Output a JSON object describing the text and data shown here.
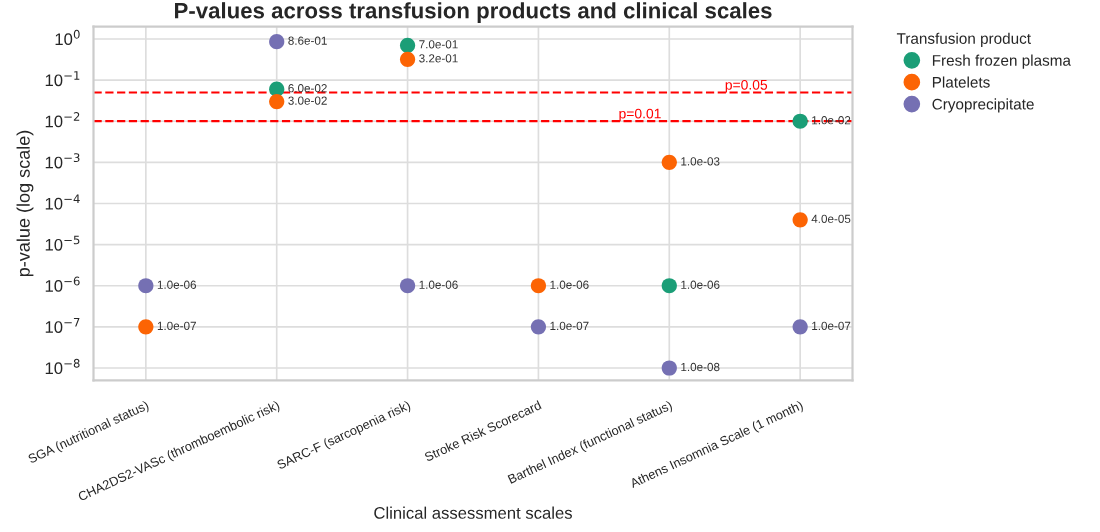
{
  "chart_data": {
    "type": "scatter",
    "title": "P-values across transfusion products and clinical scales",
    "xlabel": "Clinical assessment scales",
    "ylabel": "p-value (log scale)",
    "legend_title": "Transfusion product",
    "categories": [
      "SGA (nutritional status)",
      "CHA2DS2-VASc (thromboembolic risk)",
      "SARC-F (sarcopenia risk)",
      "Stroke Risk Scorecard",
      "Barthel Index (functional status)",
      "Athens Insomnia Scale (1 month)"
    ],
    "series": [
      {
        "name": "Fresh frozen plasma",
        "color": "#1b9e77",
        "values": [
          null,
          0.06,
          0.7,
          null,
          1e-06,
          0.01
        ],
        "value_labels": [
          null,
          "6.0e-02",
          "7.0e-01",
          null,
          "1.0e-06",
          "1.0e-02"
        ]
      },
      {
        "name": "Platelets",
        "color": "#fc6404",
        "values": [
          1e-07,
          0.03,
          0.32,
          1e-06,
          0.001,
          4e-05
        ],
        "value_labels": [
          "1.0e-07",
          "3.0e-02",
          "3.2e-01",
          "1.0e-06",
          "1.0e-03",
          "4.0e-05"
        ]
      },
      {
        "name": "Cryoprecipitate",
        "color": "#7570b3",
        "values": [
          1e-06,
          0.86,
          1e-06,
          1e-07,
          1e-08,
          1e-07
        ],
        "value_labels": [
          "1.0e-06",
          "8.6e-01",
          "1.0e-06",
          "1.0e-07",
          "1.0e-08",
          "1.0e-07"
        ]
      }
    ],
    "log": "y",
    "ylim": [
      5e-09,
      2
    ],
    "yticks": [
      {
        "value": 1e-08,
        "label": "10$^{−8}$"
      },
      {
        "value": 1e-07,
        "label": "10$^{−7}$"
      },
      {
        "value": 1e-06,
        "label": "10$^{−6}$"
      },
      {
        "value": 1e-05,
        "label": "10$^{−5}$"
      },
      {
        "value": 0.0001,
        "label": "10$^{−4}$"
      },
      {
        "value": 0.001,
        "label": "10$^{−3}$"
      },
      {
        "value": 0.01,
        "label": "10$^{−2}$"
      },
      {
        "value": 0.1,
        "label": "10$^{−1}$"
      },
      {
        "value": 1,
        "label": "10$^{0}$"
      }
    ],
    "ref_lines": [
      {
        "axis": "y",
        "value": 0.05,
        "label": "p=0.05",
        "color": "#ff0000",
        "line_style": "dashed"
      },
      {
        "axis": "y",
        "value": 0.01,
        "label": "p=0.01",
        "color": "#ff0000",
        "line_style": "dashed"
      }
    ],
    "grid": true,
    "legend": "right",
    "marker": "circle"
  }
}
